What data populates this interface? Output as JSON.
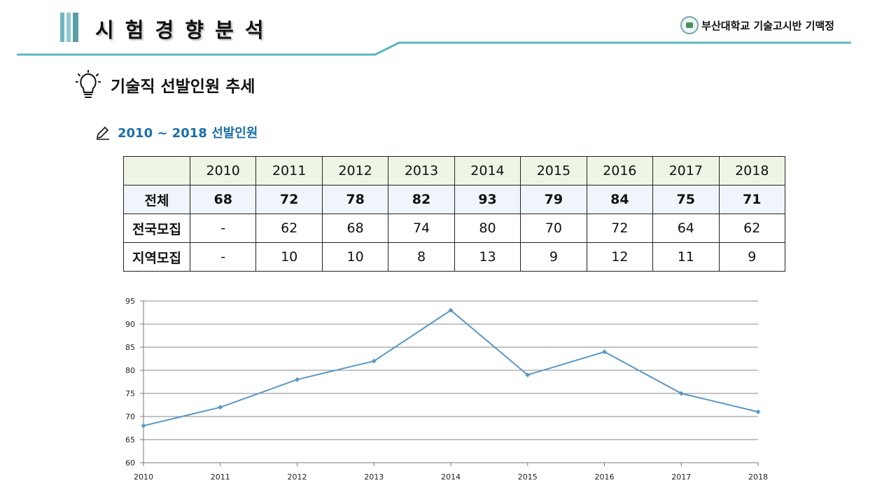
{
  "header": {
    "title": "시 험 경 향 분 석",
    "org": "부산대학교 기술고시반 기맥정",
    "accent": "#5bb5bf"
  },
  "section": {
    "icon": "lightbulb-icon",
    "title": "기술직 선발인원 추세",
    "subtitle_icon": "pencil-icon",
    "subtitle": "2010 ~ 2018 선발인원"
  },
  "table": {
    "columns": [
      "2010",
      "2011",
      "2012",
      "2013",
      "2014",
      "2015",
      "2016",
      "2017",
      "2018"
    ],
    "rows": [
      {
        "label": "전체",
        "values": [
          "68",
          "72",
          "78",
          "82",
          "93",
          "79",
          "84",
          "75",
          "71"
        ]
      },
      {
        "label": "전국모집",
        "values": [
          "-",
          "62",
          "68",
          "74",
          "80",
          "70",
          "72",
          "64",
          "62"
        ]
      },
      {
        "label": "지역모집",
        "values": [
          "-",
          "10",
          "10",
          "8",
          "13",
          "9",
          "12",
          "11",
          "9"
        ]
      }
    ]
  },
  "chart_data": {
    "type": "line",
    "title": "",
    "xlabel": "",
    "ylabel": "",
    "categories": [
      "2010",
      "2011",
      "2012",
      "2013",
      "2014",
      "2015",
      "2016",
      "2017",
      "2018"
    ],
    "series": [
      {
        "name": "전체",
        "values": [
          68,
          72,
          78,
          82,
          93,
          79,
          84,
          75,
          71
        ],
        "color": "#5b97c4"
      }
    ],
    "ylim": [
      60,
      95
    ],
    "yticks": [
      60,
      65,
      70,
      75,
      80,
      85,
      90,
      95
    ],
    "grid": true,
    "legend": "none"
  }
}
